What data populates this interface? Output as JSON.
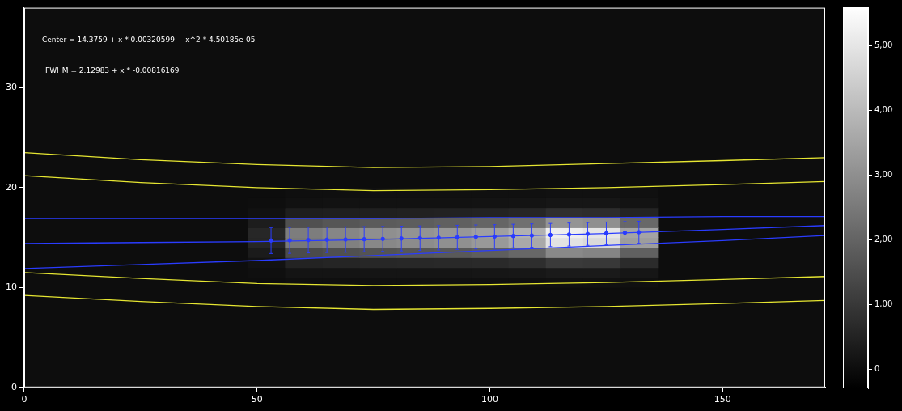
{
  "chart_data": {
    "type": "heatmap",
    "annotations": [
      "Center = 14.3759 + x * 0.00320599 + x^2 * 4.50185e-05",
      "FWHM = 2.12983 + x * -0.00816169"
    ],
    "xlim": [
      0,
      172
    ],
    "ylim": [
      0,
      38
    ],
    "xticks": [
      0,
      50,
      100,
      150
    ],
    "yticks": [
      0,
      10,
      20,
      30
    ],
    "grid": false,
    "heatmap": {
      "x_edges": [
        48,
        56,
        64,
        72,
        80,
        88,
        96,
        104,
        112,
        120,
        128,
        136
      ],
      "y_edges": [
        10,
        11,
        12,
        13,
        14,
        15,
        16,
        17,
        18,
        19,
        20
      ],
      "z": [
        [
          12,
          52,
          56,
          60,
          62,
          64,
          68,
          76,
          104,
          100,
          70
        ],
        [
          36,
          156,
          168,
          180,
          186,
          192,
          204,
          228,
          312,
          300,
          210
        ],
        [
          120,
          520,
          560,
          600,
          620,
          640,
          680,
          760,
          1040,
          1000,
          700
        ],
        [
          330,
          1430,
          1540,
          1650,
          1705,
          1760,
          1870,
          2090,
          2860,
          2750,
          1925
        ],
        [
          570,
          2470,
          2660,
          2850,
          2945,
          3040,
          3230,
          3610,
          4940,
          4750,
          3325
        ],
        [
          600,
          2600,
          2800,
          3000,
          3100,
          3200,
          3400,
          3800,
          5200,
          5000,
          3500
        ],
        [
          360,
          1560,
          1680,
          1800,
          1860,
          1920,
          2040,
          2280,
          3120,
          3000,
          2100
        ],
        [
          90,
          390,
          420,
          450,
          465,
          480,
          510,
          570,
          780,
          750,
          525
        ],
        [
          24,
          104,
          112,
          120,
          124,
          128,
          136,
          152,
          208,
          200,
          140
        ],
        [
          12,
          52,
          56,
          60,
          62,
          64,
          68,
          76,
          104,
          100,
          70
        ]
      ]
    },
    "colorbar": {
      "range": [
        -300,
        5600
      ],
      "ticks": [
        0,
        1000,
        2000,
        3000,
        4000,
        5000
      ]
    },
    "series": [
      {
        "type": "line",
        "color": "#e6e632",
        "x": [
          0,
          25,
          50,
          75,
          100,
          125,
          150,
          172
        ],
        "values": [
          23.5,
          22.8,
          22.3,
          22.0,
          22.1,
          22.4,
          22.7,
          23.0
        ]
      },
      {
        "type": "line",
        "color": "#e6e632",
        "x": [
          0,
          25,
          50,
          75,
          100,
          125,
          150,
          172
        ],
        "values": [
          21.2,
          20.5,
          20.0,
          19.7,
          19.8,
          20.0,
          20.3,
          20.6
        ]
      },
      {
        "type": "line",
        "color": "#e6e632",
        "x": [
          0,
          25,
          50,
          75,
          100,
          125,
          150,
          172
        ],
        "values": [
          11.5,
          10.9,
          10.4,
          10.2,
          10.3,
          10.5,
          10.8,
          11.1
        ]
      },
      {
        "type": "line",
        "color": "#e6e632",
        "x": [
          0,
          25,
          50,
          75,
          100,
          125,
          150,
          172
        ],
        "values": [
          9.2,
          8.6,
          8.1,
          7.8,
          7.9,
          8.1,
          8.4,
          8.7
        ]
      },
      {
        "type": "line",
        "color": "#2a3cff",
        "x": [
          0,
          25,
          50,
          75,
          100,
          125,
          150,
          172
        ],
        "values": [
          16.9,
          16.9,
          16.9,
          16.9,
          17.0,
          17.0,
          17.1,
          17.1
        ]
      },
      {
        "type": "line",
        "color": "#2a3cff",
        "x": [
          0,
          25,
          50,
          75,
          100,
          125,
          150,
          172
        ],
        "values": [
          14.4,
          14.5,
          14.6,
          14.8,
          15.1,
          15.4,
          15.8,
          16.2
        ]
      },
      {
        "type": "line",
        "color": "#2a3cff",
        "x": [
          0,
          25,
          50,
          75,
          100,
          125,
          150,
          172
        ],
        "values": [
          11.9,
          12.3,
          12.7,
          13.2,
          13.7,
          14.2,
          14.7,
          15.2
        ]
      },
      {
        "type": "scatter",
        "color": "#2a3cff",
        "marker": "circle",
        "x": [
          53,
          57,
          61,
          65,
          69,
          73,
          77,
          81,
          85,
          89,
          93,
          97,
          101,
          105,
          109,
          113,
          117,
          121,
          125,
          129,
          132
        ],
        "values": [
          14.7,
          14.72,
          14.75,
          14.78,
          14.8,
          14.83,
          14.86,
          14.9,
          14.94,
          14.98,
          15.02,
          15.06,
          15.1,
          15.15,
          15.2,
          15.25,
          15.3,
          15.36,
          15.42,
          15.48,
          15.53
        ],
        "errors": [
          1.3,
          1.3,
          1.29,
          1.28,
          1.27,
          1.26,
          1.25,
          1.24,
          1.23,
          1.22,
          1.21,
          1.2,
          1.19,
          1.18,
          1.17,
          1.16,
          1.15,
          1.14,
          1.13,
          1.12,
          1.1
        ]
      }
    ]
  }
}
